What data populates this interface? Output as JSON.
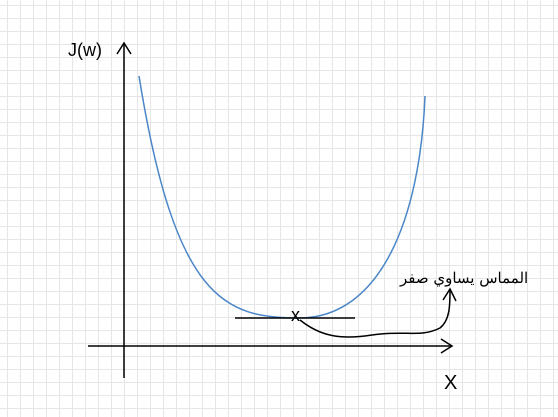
{
  "axes": {
    "y_label": "J(w)",
    "x_label": "X"
  },
  "annotation": {
    "text": "المماس يساوي صفر",
    "marker": "x"
  },
  "colors": {
    "curve": "#4a86c8",
    "lines": "#000000",
    "grid": "#e6e6e6"
  }
}
